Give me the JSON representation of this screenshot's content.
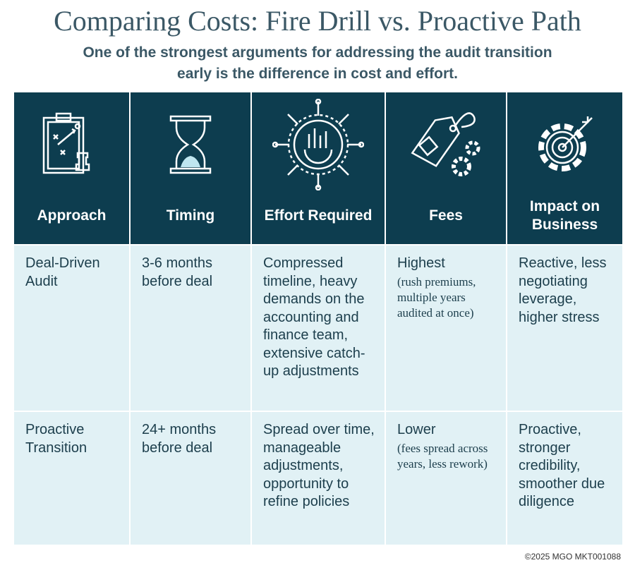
{
  "header": {
    "title": "Comparing Costs: Fire Drill vs. Proactive Path",
    "subtitle": "One of the strongest arguments for addressing the audit transition early is the difference in cost and effort."
  },
  "table": {
    "columns": [
      "Approach",
      "Timing",
      "Effort Required",
      "Fees",
      "Impact on Business"
    ],
    "rows": [
      [
        "Deal-Driven Audit",
        "3-6 months before deal",
        "Compressed timeline, heavy demands on the accounting and finance team, extensive catch-up adjustments",
        {
          "text": "Highest",
          "note": "(rush premiums, multiple years audited at once)"
        },
        "Reactive, less negotiating leverage, higher stress"
      ],
      [
        "Proactive Transition",
        "24+ months before deal",
        "Spread over time, manageable adjustments, opportunity to refine policies",
        {
          "text": "Lower",
          "note": "(fees spread across years, less rework)"
        },
        "Proactive, stronger credibility, smoother due diligence"
      ]
    ]
  },
  "footer": "©2025 MGO MKT001088"
}
